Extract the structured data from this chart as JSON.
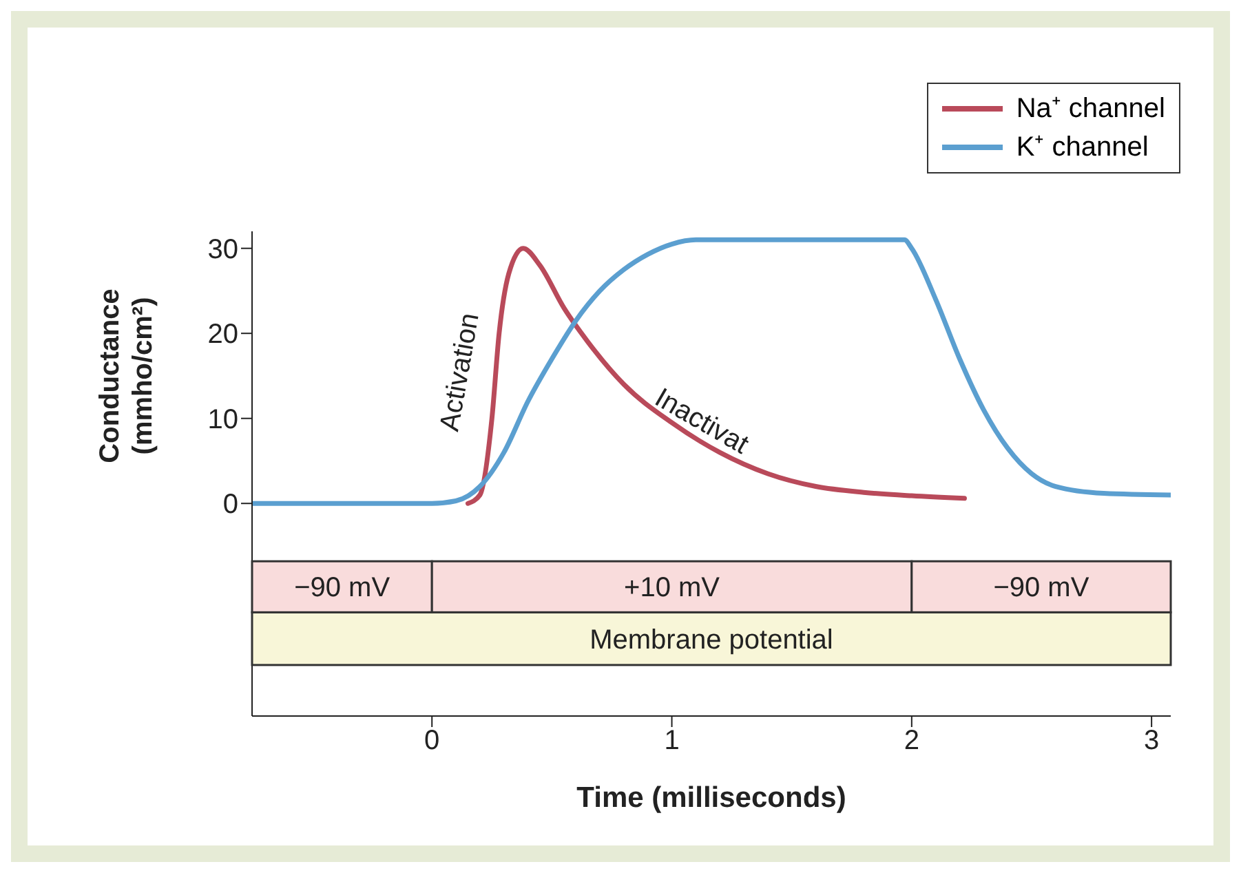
{
  "chart_data": {
    "type": "line",
    "xlabel": "Time (milliseconds)",
    "ylabel": "Conductance (mmho/cm²)",
    "series": [
      {
        "name": "Na⁺ channel",
        "color": "#b94a5a",
        "x": [
          0.15,
          0.2,
          0.25,
          0.28,
          0.32,
          0.38,
          0.45,
          0.55,
          0.65,
          0.8,
          1.0,
          1.2,
          1.4,
          1.6,
          1.8,
          2.0,
          2.22
        ],
        "values": [
          0,
          1,
          10,
          20,
          27,
          30,
          28,
          23,
          19,
          14,
          9.5,
          6,
          3.5,
          2,
          1.3,
          0.9,
          0.6
        ]
      },
      {
        "name": "K⁺ channel",
        "color": "#5b9fd0",
        "x": [
          -0.75,
          0,
          0.1,
          0.2,
          0.3,
          0.4,
          0.5,
          0.6,
          0.7,
          0.8,
          0.9,
          1.0,
          1.1,
          1.5,
          1.97,
          2.0,
          2.1,
          2.2,
          2.3,
          2.4,
          2.5,
          2.6,
          2.8,
          3.08
        ],
        "values": [
          0,
          0,
          0.3,
          2,
          6,
          12,
          17,
          21.5,
          25,
          27.5,
          29.3,
          30.5,
          31,
          31,
          31,
          30,
          24,
          17,
          11,
          6.5,
          3.5,
          2,
          1.2,
          1
        ]
      }
    ],
    "xlim": [
      -0.75,
      3.08
    ],
    "xticks": [
      0,
      1,
      2,
      3
    ],
    "ylim": [
      -25,
      32
    ],
    "yticks": [
      0,
      10,
      20,
      30
    ],
    "bands": [
      {
        "axis": "x",
        "from": -0.75,
        "to": 0,
        "label": "−90 mV",
        "color": "#f9dcdc"
      },
      {
        "axis": "x",
        "from": 0,
        "to": 2,
        "label": "+10 mV",
        "color": "#f9dcdc"
      },
      {
        "axis": "x",
        "from": 2,
        "to": 3.08,
        "label": "−90 mV",
        "color": "#f9dcdc"
      }
    ],
    "annotations": [
      "Activation",
      "Inactivat",
      "Membrane potential"
    ],
    "legend": "top right",
    "grid": false,
    "marker": "none"
  }
}
